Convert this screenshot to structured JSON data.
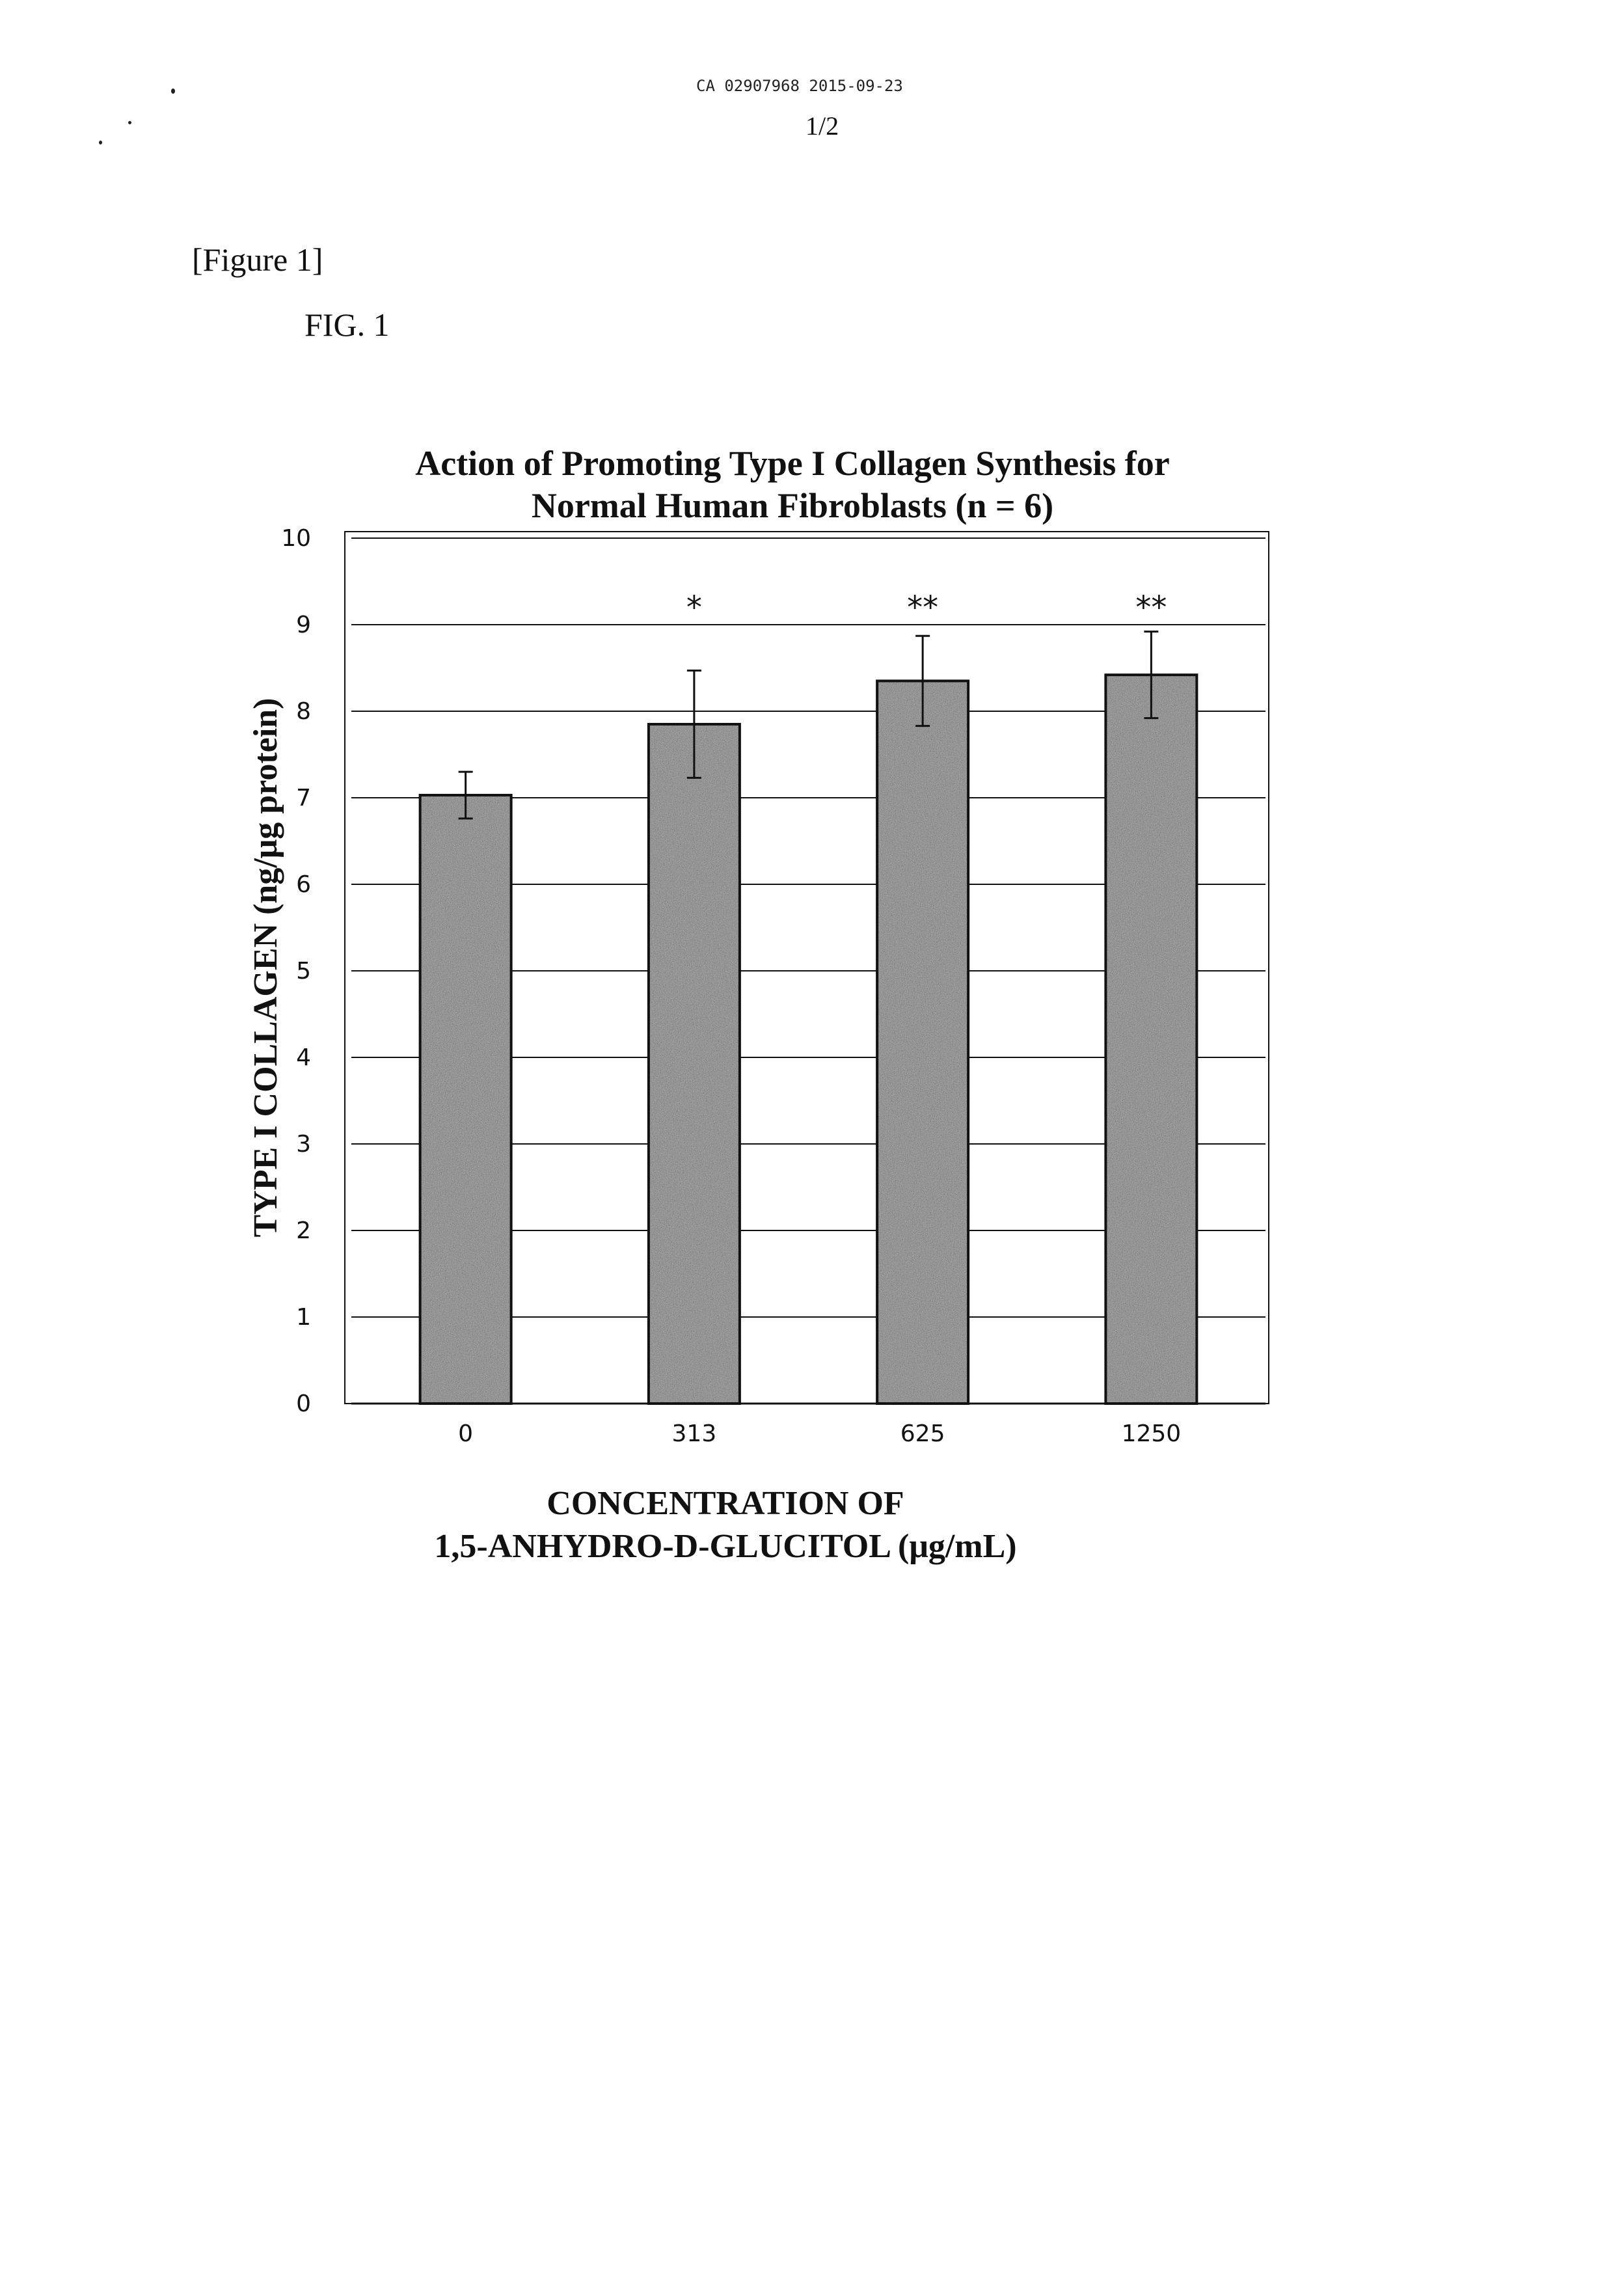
{
  "header": {
    "document_id": "CA 02907968 2015-09-23",
    "page_number": "1/2"
  },
  "figure": {
    "bracket_label": "[Figure  1]",
    "fig_label": "FIG.  1"
  },
  "chart_data": {
    "type": "bar",
    "title_lines": [
      "Action of Promoting Type I Collagen Synthesis for",
      "Normal Human Fibroblasts (n = 6)"
    ],
    "xlabel_lines": [
      "CONCENTRATION OF",
      "1,5-ANHYDRO-D-GLUCITOL (μg/mL)"
    ],
    "ylabel": "TYPE I COLLAGEN (ng/μg protein)",
    "categories": [
      "0",
      "313",
      "625",
      "1250"
    ],
    "values": [
      7.03,
      7.85,
      8.35,
      8.42
    ],
    "error": [
      0.27,
      0.62,
      0.52,
      0.5
    ],
    "significance": [
      "",
      "*",
      "**",
      "**"
    ],
    "ylim": [
      0,
      10
    ],
    "yticks": [
      "0",
      "1",
      "2",
      "3",
      "4",
      "5",
      "6",
      "7",
      "8",
      "9",
      "10"
    ],
    "grid": true,
    "bar_color": "#8a8a8a"
  }
}
